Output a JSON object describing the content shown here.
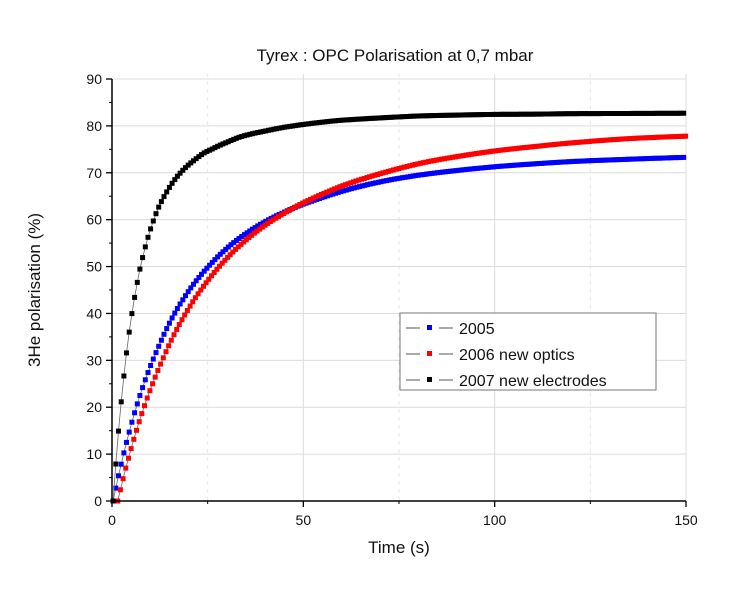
{
  "chart_data": {
    "type": "scatter",
    "title": "Tyrex : OPC Polarisation at 0,7 mbar",
    "xlabel": "Time (s)",
    "ylabel": "3He polarisation (%)",
    "xlim": [
      0,
      150
    ],
    "ylim": [
      0,
      90
    ],
    "x_ticks": [
      0,
      50,
      100,
      150
    ],
    "x_tick_labels": [
      "0",
      "50",
      "100",
      "150"
    ],
    "x_minor_ticks": [
      25,
      75,
      125
    ],
    "y_ticks": [
      0,
      10,
      20,
      30,
      40,
      50,
      60,
      70,
      80,
      90
    ],
    "y_tick_labels": [
      "0",
      "10",
      "20",
      "30",
      "40",
      "50",
      "60",
      "70",
      "80",
      "90"
    ],
    "y_minor_ticks": [
      5,
      15,
      25,
      35,
      45,
      55,
      65,
      75,
      85
    ],
    "grid": true,
    "legend_position": "center-right",
    "marker_interval_s": 0.7,
    "series": [
      {
        "name": "2005",
        "color": "#0000ff",
        "marker": "square",
        "x": [
          0.3,
          1.3,
          2.3,
          3.3,
          5.3,
          7.3,
          10.3,
          15.3,
          20.3,
          25.3,
          30.3,
          35.3,
          40.3,
          45.3,
          50.3,
          60.3,
          70.3,
          80.3,
          90.3,
          100.3,
          110.3,
          120.3,
          135.3,
          150
        ],
        "y": [
          0,
          3.9,
          7.5,
          10.9,
          17.1,
          22.5,
          29.3,
          38.4,
          45.1,
          50.1,
          54.1,
          57.2,
          59.7,
          61.7,
          63.4,
          66.1,
          68.1,
          69.5,
          70.5,
          71.3,
          71.9,
          72.4,
          72.9,
          73.3
        ]
      },
      {
        "name": "2006 new optics",
        "color": "#ff0000",
        "marker": "square",
        "x": [
          1.5,
          2.5,
          3.5,
          5.5,
          7.5,
          10.5,
          15.5,
          20.5,
          25.5,
          30.5,
          35.5,
          40.5,
          45.5,
          50.5,
          60.5,
          70.5,
          80.5,
          90.5,
          100.5,
          110.5,
          120.5,
          135.5,
          150
        ],
        "y": [
          0,
          3.4,
          6.7,
          12.6,
          17.9,
          24.8,
          34.3,
          41.7,
          47.5,
          52.2,
          56.0,
          59.1,
          61.6,
          63.8,
          67.3,
          69.9,
          72.0,
          73.5,
          74.7,
          75.6,
          76.4,
          77.3,
          77.8
        ]
      },
      {
        "name": "2007 new electrodes",
        "color": "#000000",
        "marker": "square",
        "x": [
          0.3,
          1,
          2,
          3,
          4,
          5,
          6,
          7,
          8,
          9,
          10,
          12,
          14,
          16,
          18,
          20,
          22,
          24,
          26,
          28,
          30,
          33,
          36,
          40,
          45,
          50,
          55,
          60,
          70,
          80,
          90,
          100,
          110,
          120,
          135,
          150
        ],
        "y": [
          0,
          7.9,
          17.7,
          25.9,
          32.9,
          38.9,
          43.9,
          48.3,
          51.9,
          55.1,
          57.8,
          62.3,
          65.5,
          68.1,
          70.1,
          71.7,
          73.0,
          74.2,
          75.0,
          75.8,
          76.5,
          77.5,
          78.2,
          78.9,
          79.7,
          80.3,
          80.8,
          81.2,
          81.7,
          82.1,
          82.3,
          82.45,
          82.5,
          82.6,
          82.65,
          82.7
        ]
      }
    ]
  }
}
